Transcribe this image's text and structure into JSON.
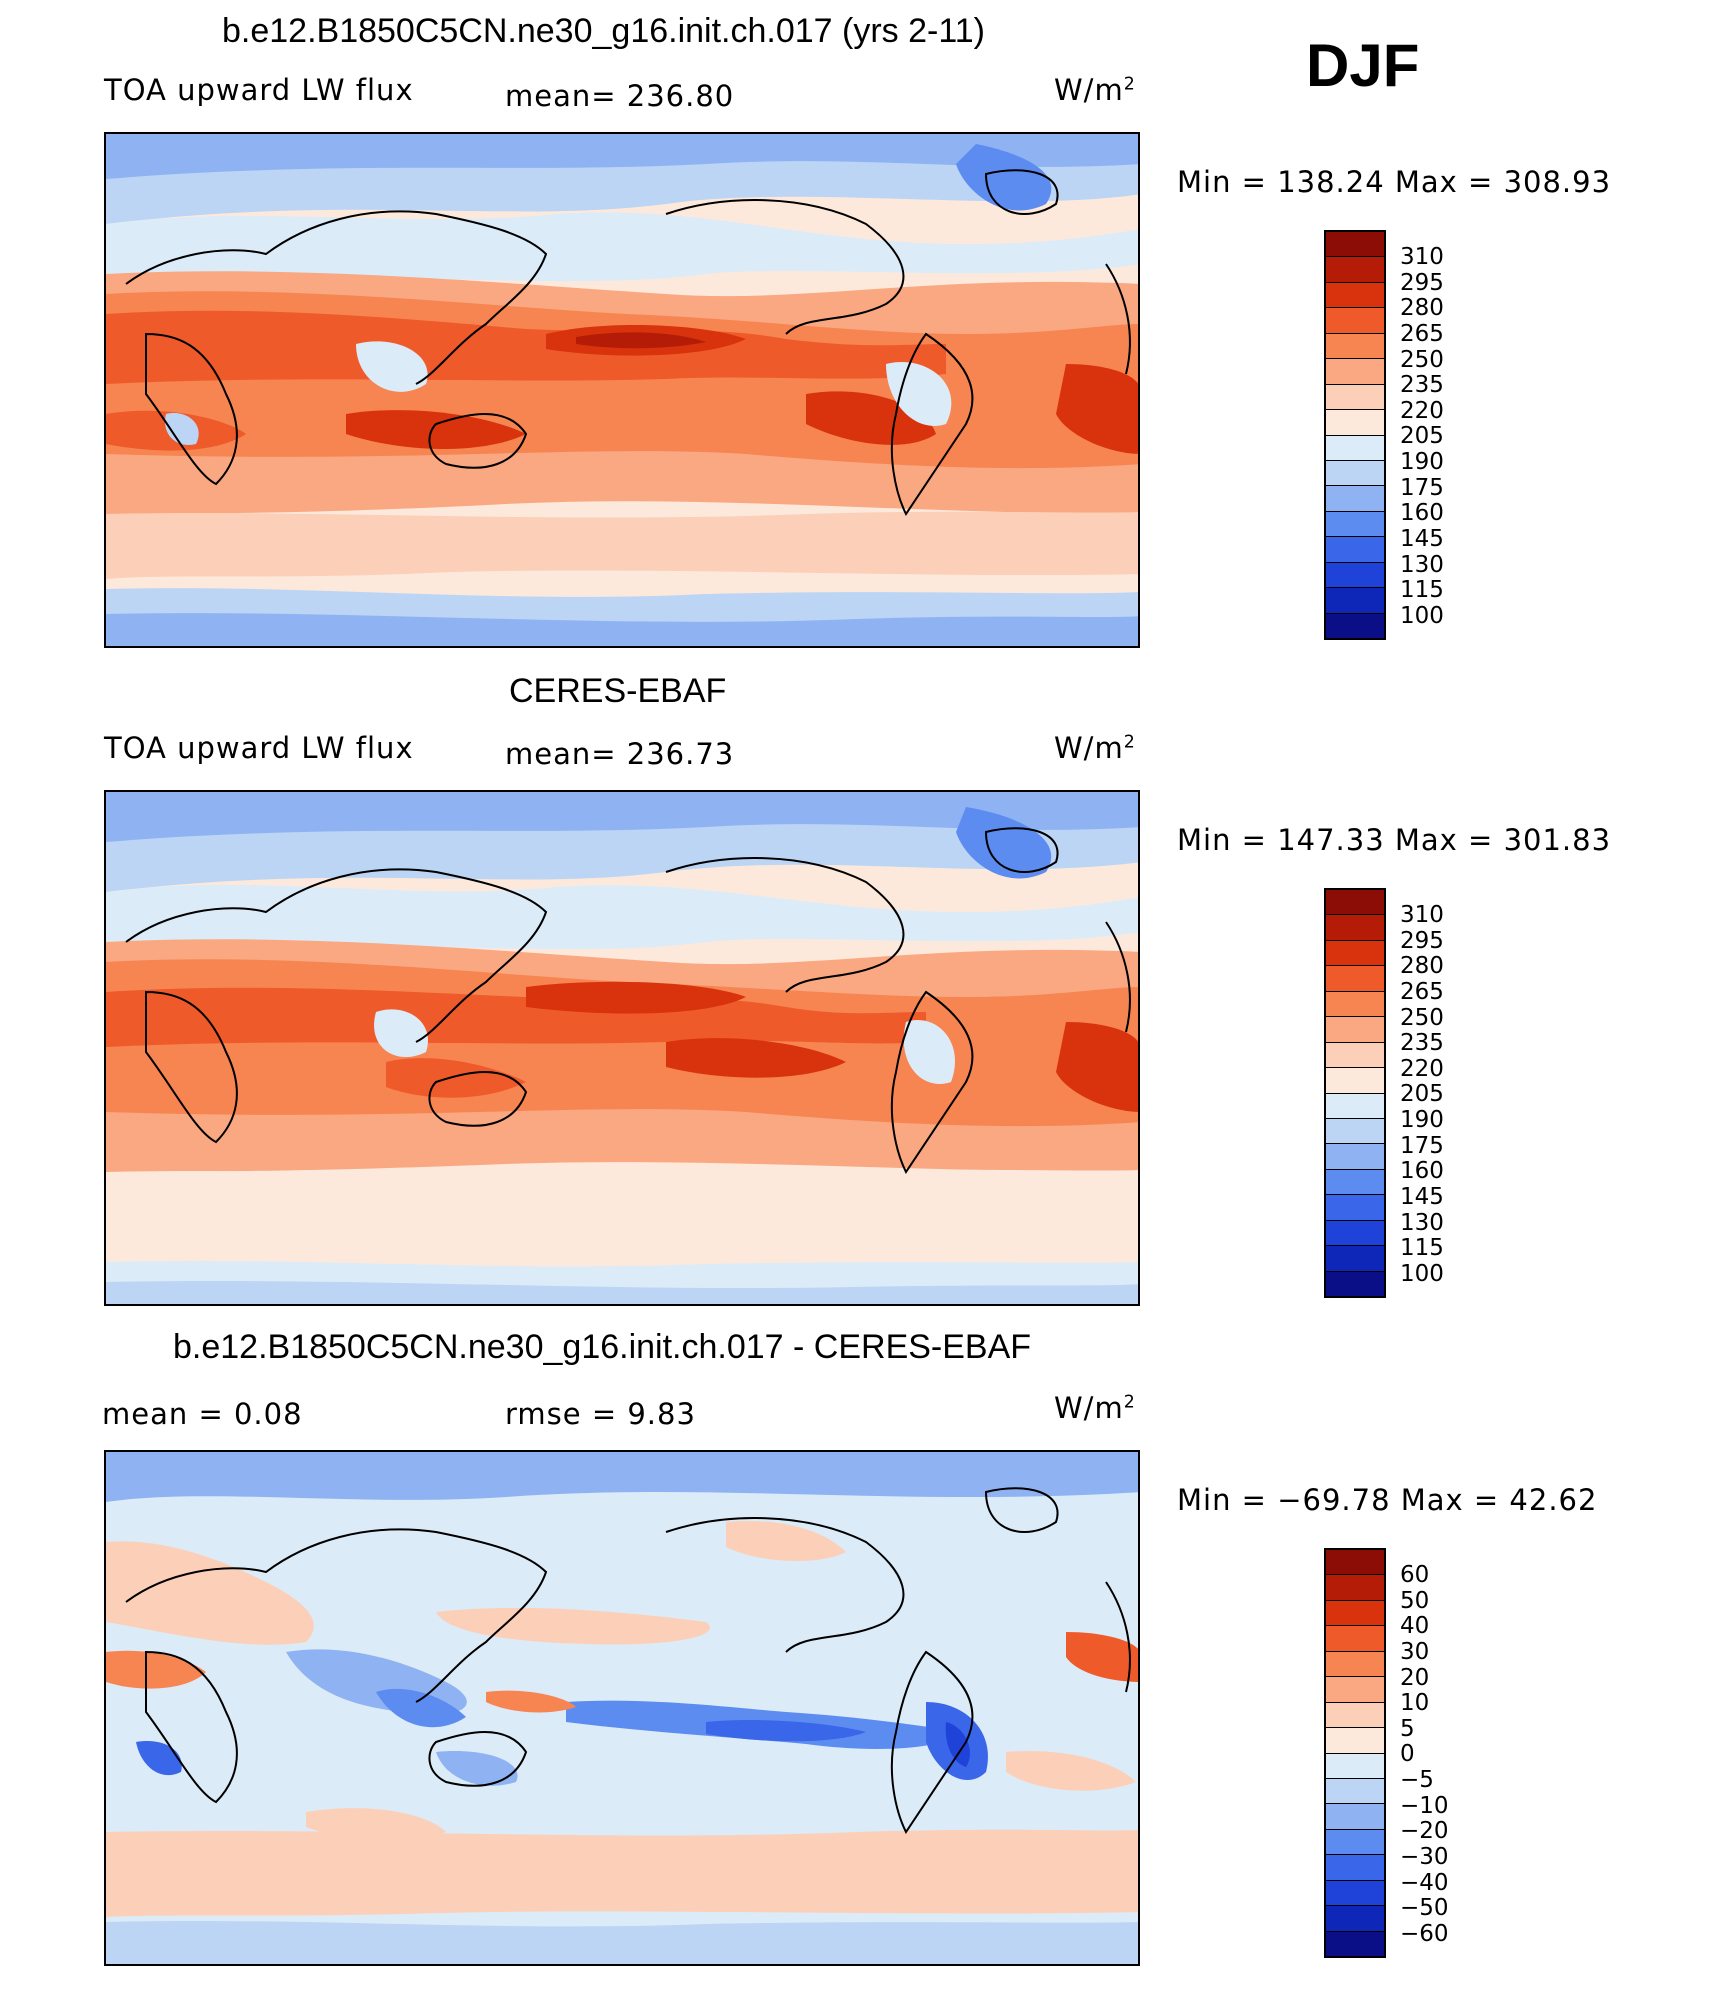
{
  "season": "DJF",
  "panels": [
    {
      "title": "b.e12.B1850C5CN.ne30_g16.init.ch.017 (yrs 2-11)",
      "left_label": "TOA upward LW flux",
      "center_label": "mean= 236.80",
      "units": "W/m",
      "units_sup": "2",
      "minmax": "Min  =  138.24  Max  =  308.93"
    },
    {
      "title": "CERES-EBAF",
      "left_label": "TOA upward LW flux",
      "center_label": "mean= 236.73",
      "units": "W/m",
      "units_sup": "2",
      "minmax": "Min  =  147.33  Max  =  301.83"
    },
    {
      "title": "b.e12.B1850C5CN.ne30_g16.init.ch.017 - CERES-EBAF",
      "left_label": "mean =      0.08",
      "center_label": "rmse =      9.83",
      "units": "W/m",
      "units_sup": "2",
      "minmax": "Min  =  −69.78  Max  =     42.62"
    }
  ],
  "chart_data": [
    {
      "type": "heatmap",
      "title": "b.e12.B1850C5CN.ne30_g16.init.ch.017 (yrs 2-11)",
      "variable": "TOA upward LW flux",
      "units": "W/m2",
      "mean": 236.8,
      "min": 138.24,
      "max": 308.93,
      "colorbar_labels": [
        "310",
        "295",
        "280",
        "265",
        "250",
        "235",
        "220",
        "205",
        "190",
        "175",
        "160",
        "145",
        "130",
        "115",
        "100"
      ],
      "colorbar_colors": [
        "#8b0d05",
        "#b51c08",
        "#d8330c",
        "#ef5a2a",
        "#f78552",
        "#f9a882",
        "#fcd0b8",
        "#fde9dc",
        "#dcebf8",
        "#bcd5f5",
        "#8fb2f2",
        "#5d8cf0",
        "#3a66ea",
        "#1f43d8",
        "#0e27b8",
        "#0a0f88"
      ]
    },
    {
      "type": "heatmap",
      "title": "CERES-EBAF",
      "variable": "TOA upward LW flux",
      "units": "W/m2",
      "mean": 236.73,
      "min": 147.33,
      "max": 301.83,
      "colorbar_labels": [
        "310",
        "295",
        "280",
        "265",
        "250",
        "235",
        "220",
        "205",
        "190",
        "175",
        "160",
        "145",
        "130",
        "115",
        "100"
      ],
      "colorbar_colors": [
        "#8b0d05",
        "#b51c08",
        "#d8330c",
        "#ef5a2a",
        "#f78552",
        "#f9a882",
        "#fcd0b8",
        "#fde9dc",
        "#dcebf8",
        "#bcd5f5",
        "#8fb2f2",
        "#5d8cf0",
        "#3a66ea",
        "#1f43d8",
        "#0e27b8",
        "#0a0f88"
      ]
    },
    {
      "type": "heatmap",
      "title": "b.e12.B1850C5CN.ne30_g16.init.ch.017 - CERES-EBAF",
      "units": "W/m2",
      "mean": 0.08,
      "rmse": 9.83,
      "min": -69.78,
      "max": 42.62,
      "colorbar_labels": [
        "60",
        "50",
        "40",
        "30",
        "20",
        "10",
        "5",
        "0",
        "−5",
        "−10",
        "−20",
        "−30",
        "−40",
        "−50",
        "−60"
      ],
      "colorbar_colors": [
        "#8b0d05",
        "#b51c08",
        "#d8330c",
        "#ef5a2a",
        "#f78552",
        "#f9a882",
        "#fcd0b8",
        "#fde9dc",
        "#dcebf8",
        "#bcd5f5",
        "#8fb2f2",
        "#5d8cf0",
        "#3a66ea",
        "#1f43d8",
        "#0e27b8",
        "#0a0f88"
      ]
    }
  ]
}
